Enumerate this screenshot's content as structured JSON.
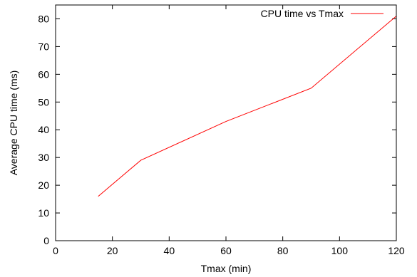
{
  "chart_data": {
    "type": "line",
    "title": "",
    "xlabel": "Tmax (min)",
    "ylabel": "Average CPU time (ms)",
    "xlim": [
      0,
      120
    ],
    "ylim": [
      0,
      85
    ],
    "xticks": [
      0,
      20,
      40,
      60,
      80,
      100,
      120
    ],
    "yticks": [
      0,
      10,
      20,
      30,
      40,
      50,
      60,
      70,
      80
    ],
    "grid": false,
    "legend_position": "top-right",
    "series": [
      {
        "name": "CPU time vs Tmax",
        "color": "#ff0000",
        "x": [
          15,
          30,
          60,
          90,
          120
        ],
        "y": [
          16,
          29,
          43,
          55,
          81
        ]
      }
    ]
  }
}
